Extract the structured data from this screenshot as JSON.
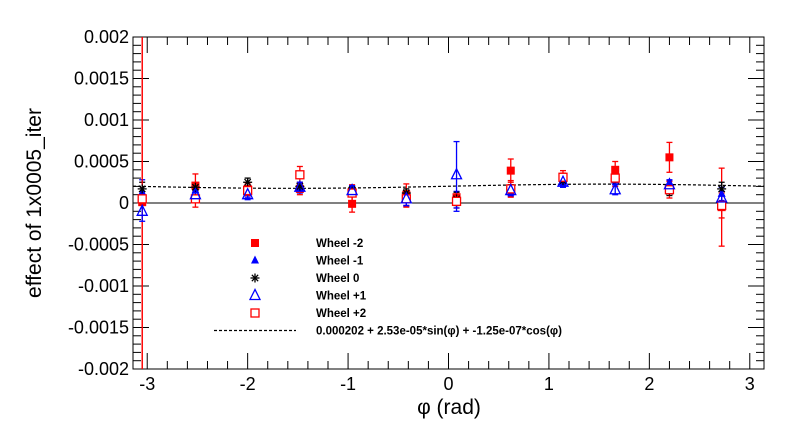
{
  "chart_data": {
    "type": "scatter",
    "title": "",
    "xlabel": "φ (rad)",
    "ylabel": "effect of 1x0005_iter",
    "xlim": [
      -3.14159,
      3.14159
    ],
    "ylim": [
      -0.002,
      0.002
    ],
    "grid": false,
    "legend_position": "lower-left",
    "x_ticks": [
      -3,
      -2,
      -1,
      0,
      1,
      2,
      3
    ],
    "x_tick_labels": [
      "-3",
      "-2",
      "-1",
      "0",
      "1",
      "2",
      "3"
    ],
    "y_ticks": [
      -0.002,
      -0.0015,
      -0.001,
      -0.0005,
      0,
      0.0005,
      0.001,
      0.0015,
      0.002
    ],
    "y_tick_labels": [
      "-0.002",
      "-0.0015",
      "-0.001",
      "-0.0005",
      "0",
      "0.0005",
      "0.001",
      "0.0015",
      "0.002"
    ],
    "series": [
      {
        "name": "Wheel -2",
        "marker": "filled-square",
        "color": "#ff0000",
        "points": [
          {
            "x": -3.05,
            "y": 1e-05,
            "err": 0.0035
          },
          {
            "x": -2.52,
            "y": 0.00021,
            "err": 0.00014
          },
          {
            "x": -2.0,
            "y": 0.00017,
            "err": 7e-05
          },
          {
            "x": -1.48,
            "y": 0.00017,
            "err": 7e-05
          },
          {
            "x": -0.96,
            "y": -1e-05,
            "err": 0.0001
          },
          {
            "x": -0.42,
            "y": 0.0001,
            "err": 0.00013
          },
          {
            "x": 0.08,
            "y": 7e-05,
            "err": 6e-05
          },
          {
            "x": 0.62,
            "y": 0.00039,
            "err": 0.00014
          },
          {
            "x": 1.14,
            "y": 0.00029,
            "err": 7e-05
          },
          {
            "x": 1.66,
            "y": 0.0004,
            "err": 0.0001
          },
          {
            "x": 2.2,
            "y": 0.00055,
            "err": 0.00018
          },
          {
            "x": 2.72,
            "y": -5e-05,
            "err": 0.00047
          }
        ]
      },
      {
        "name": "Wheel -1",
        "marker": "filled-triangle",
        "color": "#0000ff",
        "points": [
          {
            "x": -3.05,
            "y": 0.00013,
            "err": 0.00015
          },
          {
            "x": -2.52,
            "y": 0.00015,
            "err": 6e-05
          },
          {
            "x": -2.0,
            "y": 0.00013,
            "err": 6e-05
          },
          {
            "x": -1.48,
            "y": 0.00018,
            "err": 6e-05
          },
          {
            "x": -0.96,
            "y": 0.00014,
            "err": 6e-05
          },
          {
            "x": -0.42,
            "y": 4e-05,
            "err": 8e-05
          },
          {
            "x": 0.08,
            "y": 2e-05,
            "err": 0.00012
          },
          {
            "x": 0.62,
            "y": 0.00013,
            "err": 5e-05
          },
          {
            "x": 1.14,
            "y": 0.00024,
            "err": 5e-05
          },
          {
            "x": 1.66,
            "y": 0.00027,
            "err": 5e-05
          },
          {
            "x": 2.2,
            "y": 0.00022,
            "err": 5e-05
          },
          {
            "x": 2.72,
            "y": 0.00011,
            "err": 8e-05
          }
        ]
      },
      {
        "name": "Wheel 0",
        "marker": "star",
        "color": "#000000",
        "points": [
          {
            "x": -3.05,
            "y": 0.00017,
            "err": 8e-05
          },
          {
            "x": -2.52,
            "y": 0.00019,
            "err": 5e-05
          },
          {
            "x": -2.0,
            "y": 0.00025,
            "err": 5e-05
          },
          {
            "x": -1.48,
            "y": 0.0002,
            "err": 5e-05
          },
          {
            "x": -0.96,
            "y": 0.00016,
            "err": 5e-05
          },
          {
            "x": -0.42,
            "y": 0.00012,
            "err": 5e-05
          },
          {
            "x": 0.08,
            "y": 5e-05,
            "err": 8e-05
          },
          {
            "x": 0.62,
            "y": 0.00017,
            "err": 5e-05
          },
          {
            "x": 1.14,
            "y": 0.00027,
            "err": 5e-05
          },
          {
            "x": 1.66,
            "y": 0.00029,
            "err": 5e-05
          },
          {
            "x": 2.2,
            "y": 0.00014,
            "err": 5e-05
          },
          {
            "x": 2.72,
            "y": 0.00017,
            "err": 8e-05
          }
        ]
      },
      {
        "name": "Wheel +1",
        "marker": "open-triangle",
        "color": "#0000ff",
        "points": [
          {
            "x": -3.05,
            "y": -0.0001,
            "err": 0.00012
          },
          {
            "x": -2.52,
            "y": 0.0001,
            "err": 6e-05
          },
          {
            "x": -2.0,
            "y": 0.0001,
            "err": 6e-05
          },
          {
            "x": -1.48,
            "y": 0.00019,
            "err": 6e-05
          },
          {
            "x": -0.96,
            "y": 0.00015,
            "err": 6e-05
          },
          {
            "x": -0.42,
            "y": 5e-05,
            "err": 8e-05
          },
          {
            "x": 0.08,
            "y": 0.00034,
            "err": 0.0004
          },
          {
            "x": 0.62,
            "y": 0.00015,
            "err": 6e-05
          },
          {
            "x": 1.14,
            "y": 0.00025,
            "err": 6e-05
          },
          {
            "x": 1.66,
            "y": 0.00016,
            "err": 6e-05
          },
          {
            "x": 2.2,
            "y": 0.00022,
            "err": 6e-05
          },
          {
            "x": 2.72,
            "y": 6e-05,
            "err": 8e-05
          }
        ]
      },
      {
        "name": "Wheel +2",
        "marker": "open-square",
        "color": "#ff0000",
        "points": [
          {
            "x": -3.05,
            "y": 5e-05,
            "err": 0.0035
          },
          {
            "x": -2.52,
            "y": 5e-05,
            "err": 0.0001
          },
          {
            "x": -2.0,
            "y": 0.00015,
            "err": 6e-05
          },
          {
            "x": -1.48,
            "y": 0.00034,
            "err": 0.0001
          },
          {
            "x": -0.96,
            "y": 0.00012,
            "err": 0.0001
          },
          {
            "x": -0.42,
            "y": 5e-05,
            "err": 0.0001
          },
          {
            "x": 0.08,
            "y": 2e-05,
            "err": 8e-05
          },
          {
            "x": 0.62,
            "y": 0.00017,
            "err": 0.0001
          },
          {
            "x": 1.14,
            "y": 0.00031,
            "err": 8e-05
          },
          {
            "x": 1.66,
            "y": 0.0003,
            "err": 0.0001
          },
          {
            "x": 2.2,
            "y": 0.00016,
            "err": 0.0001
          },
          {
            "x": 2.72,
            "y": -3e-05,
            "err": 0.00015
          }
        ]
      }
    ],
    "fit": {
      "name": "0.000202 + 2.53e-05*sin(φ) + -1.25e-07*cos(φ)",
      "style": "dashed",
      "color": "#000000",
      "a": 0.000202,
      "b_sin": 2.53e-05,
      "c_cos": -1.25e-07
    }
  }
}
